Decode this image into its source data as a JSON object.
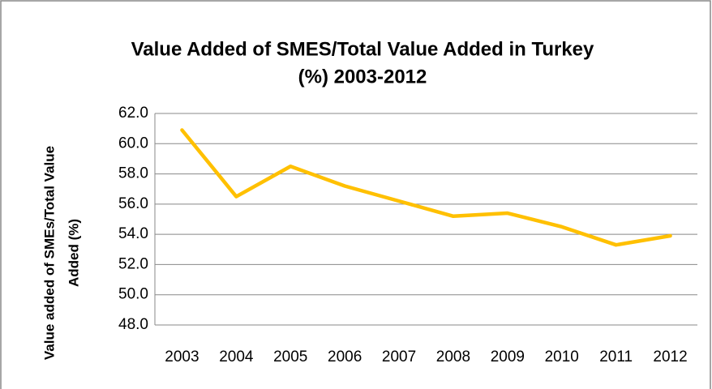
{
  "chart_data": {
    "type": "line",
    "title": [
      "Value Added of SMES/Total Value Added in Turkey",
      "(%) 2003-2012"
    ],
    "y_label": [
      "Value added of SMEs/Total Value",
      "Added (%)"
    ],
    "categories": [
      "2003",
      "2004",
      "2005",
      "2006",
      "2007",
      "2008",
      "2009",
      "2010",
      "2011",
      "2012"
    ],
    "values": [
      60.9,
      56.5,
      58.5,
      57.2,
      56.2,
      55.2,
      55.4,
      54.5,
      53.3,
      53.9
    ],
    "color": "#ffc000",
    "ylim": [
      48,
      62
    ],
    "yticks": [
      {
        "value": 48,
        "label": "48.0"
      },
      {
        "value": 50,
        "label": "50.0"
      },
      {
        "value": 52,
        "label": "52.0"
      },
      {
        "value": 54,
        "label": "54.0"
      },
      {
        "value": 56,
        "label": "56.0"
      },
      {
        "value": 58,
        "label": "58.0"
      },
      {
        "value": 60,
        "label": "60.0"
      },
      {
        "value": 62,
        "label": "62.0"
      }
    ],
    "grid": true
  }
}
